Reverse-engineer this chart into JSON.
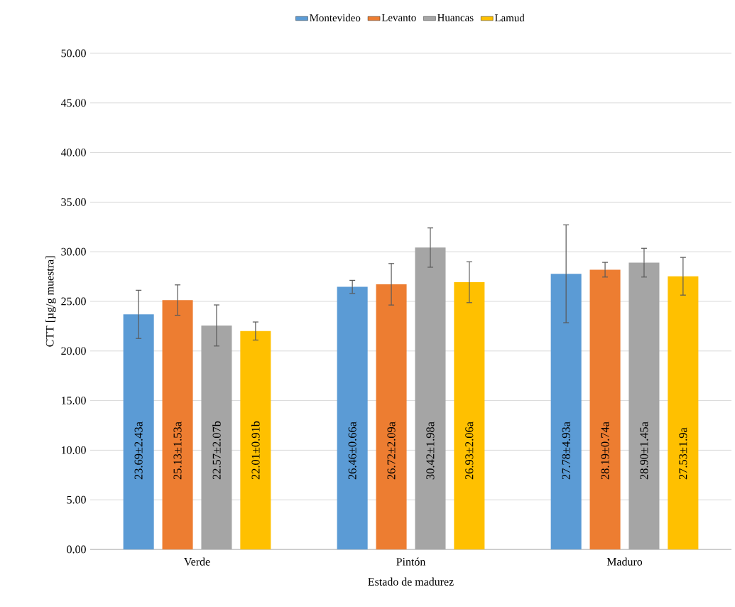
{
  "chart_data": {
    "type": "bar",
    "xlabel": "Estado de madurez",
    "ylabel": "CTT [µg/g muestra]",
    "categories": [
      "Verde",
      "Pintón",
      "Maduro"
    ],
    "series": [
      {
        "name": "Montevideo",
        "color": "#5b9bd5",
        "values": [
          23.69,
          26.46,
          27.78
        ],
        "errors": [
          2.43,
          0.66,
          4.93
        ],
        "value_labels": [
          "23.69±2.43a",
          "26.46±0.66a",
          "27.78±4.93a"
        ]
      },
      {
        "name": "Levanto",
        "color": "#ed7d31",
        "values": [
          25.13,
          26.72,
          28.19
        ],
        "errors": [
          1.53,
          2.09,
          0.74
        ],
        "value_labels": [
          "25.13±1.53a",
          "26.72±2.09a",
          "28.19±0.74a"
        ]
      },
      {
        "name": "Huancas",
        "color": "#a5a5a5",
        "values": [
          22.57,
          30.42,
          28.9
        ],
        "errors": [
          2.07,
          1.98,
          1.45
        ],
        "value_labels": [
          "22.57±2.07b",
          "30.42±1.98a",
          "28.90±1.45a"
        ]
      },
      {
        "name": "Lamud",
        "color": "#ffc000",
        "values": [
          22.01,
          26.93,
          27.53
        ],
        "errors": [
          0.91,
          2.06,
          1.9
        ],
        "value_labels": [
          "22.01±0.91b",
          "26.93±2.06a",
          "27.53±1.9a"
        ]
      }
    ],
    "ylim": [
      0,
      50
    ],
    "yticks": [
      {
        "value": 0,
        "label": "0.00"
      },
      {
        "value": 5,
        "label": "5.00"
      },
      {
        "value": 10,
        "label": "10.00"
      },
      {
        "value": 15,
        "label": "15.00"
      },
      {
        "value": 20,
        "label": "20.00"
      },
      {
        "value": 25,
        "label": "25.00"
      },
      {
        "value": 30,
        "label": "30.00"
      },
      {
        "value": 35,
        "label": "35.00"
      },
      {
        "value": 40,
        "label": "40.00"
      },
      {
        "value": 45,
        "label": "45.00"
      },
      {
        "value": 50,
        "label": "50.00"
      }
    ],
    "grid": "y",
    "legend": "top"
  }
}
